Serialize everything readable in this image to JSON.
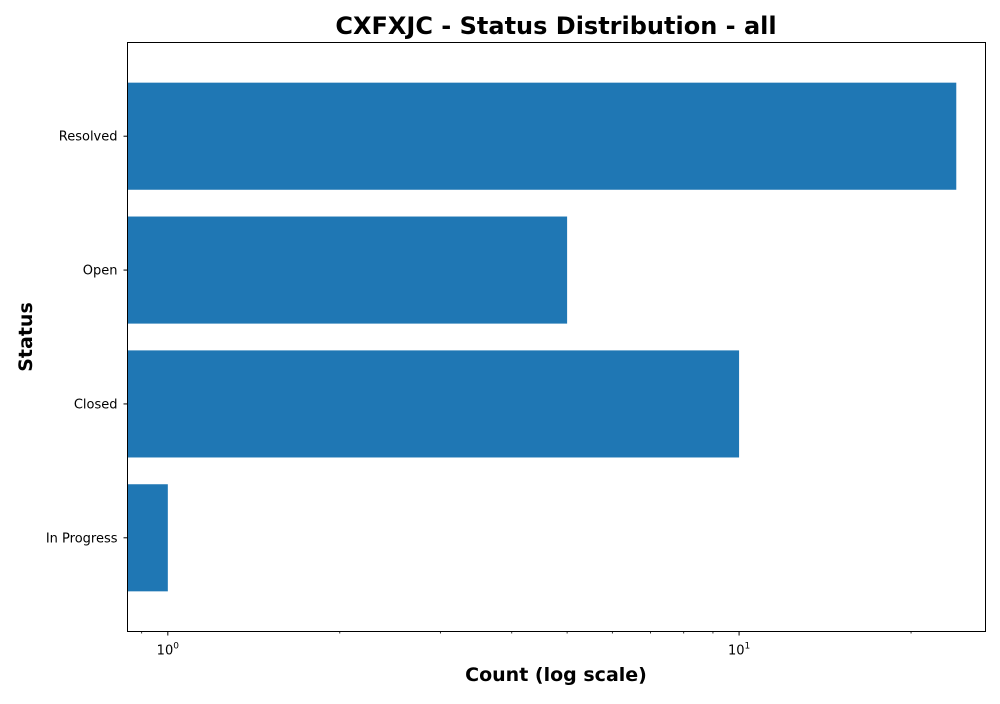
{
  "chart_data": {
    "type": "bar",
    "orientation": "horizontal",
    "title": "CXFXJC - Status Distribution - all",
    "xlabel": "Count (log scale)",
    "ylabel": "Status",
    "x_scale": "log",
    "xlim": [
      0.85,
      27
    ],
    "x_major_ticks": [
      {
        "value": 1,
        "base": "10",
        "exp": "0"
      },
      {
        "value": 10,
        "base": "10",
        "exp": "1"
      }
    ],
    "categories": [
      "Resolved",
      "Open",
      "Closed",
      "In Progress"
    ],
    "values": [
      24,
      5,
      10,
      1
    ],
    "bar_color": "#1f77b4",
    "grid": false,
    "legend": false
  }
}
